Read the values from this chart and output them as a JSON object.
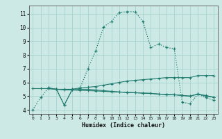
{
  "xlabel": "Humidex (Indice chaleur)",
  "bg_color": "#cce9e5",
  "grid_color": "#9ecfca",
  "line_color": "#1e7a6e",
  "xlim": [
    -0.5,
    23.5
  ],
  "ylim": [
    3.7,
    11.6
  ],
  "xticks": [
    0,
    1,
    2,
    3,
    4,
    5,
    6,
    7,
    8,
    9,
    10,
    11,
    12,
    13,
    14,
    15,
    16,
    17,
    18,
    19,
    20,
    21,
    22,
    23
  ],
  "yticks": [
    4,
    5,
    6,
    7,
    8,
    9,
    10,
    11
  ],
  "curve1_x": [
    0,
    1,
    2,
    3,
    4,
    5,
    6,
    7,
    8,
    9,
    10,
    11,
    12,
    13,
    14,
    15,
    16,
    17,
    18,
    19,
    20,
    21,
    22,
    23
  ],
  "curve1_y": [
    4.0,
    4.9,
    5.6,
    5.5,
    4.35,
    5.5,
    5.55,
    7.0,
    8.3,
    10.05,
    10.45,
    11.1,
    11.15,
    11.15,
    10.45,
    8.55,
    8.8,
    8.55,
    8.45,
    4.55,
    4.45,
    5.15,
    4.9,
    4.7
  ],
  "curve2_x": [
    0,
    1,
    2,
    3,
    4,
    5,
    6,
    7,
    8,
    9,
    10,
    11,
    12,
    13,
    14,
    15,
    16,
    17,
    18,
    19,
    20,
    21,
    22,
    23
  ],
  "curve2_y": [
    5.55,
    5.55,
    5.55,
    5.5,
    5.45,
    5.45,
    5.42,
    5.4,
    5.38,
    5.35,
    5.32,
    5.3,
    5.27,
    5.25,
    5.22,
    5.2,
    5.15,
    5.12,
    5.1,
    5.05,
    5.0,
    5.15,
    5.0,
    4.92
  ],
  "curve3_x": [
    2,
    3,
    4,
    5,
    6,
    7,
    8,
    9,
    10,
    11,
    12,
    13,
    14,
    15,
    16,
    17,
    18,
    19,
    20,
    21,
    22,
    23
  ],
  "curve3_y": [
    5.55,
    5.5,
    5.5,
    5.5,
    5.6,
    5.65,
    5.7,
    5.8,
    5.9,
    6.0,
    6.1,
    6.15,
    6.2,
    6.25,
    6.3,
    6.35,
    6.35,
    6.35,
    6.35,
    6.5,
    6.5,
    6.5
  ],
  "curve4_x": [
    2,
    3,
    4,
    5,
    6,
    7,
    8,
    9,
    10,
    11,
    12,
    13,
    14,
    15,
    16,
    17,
    18,
    19,
    20,
    21,
    22,
    23
  ],
  "curve4_y": [
    5.6,
    5.5,
    4.35,
    5.45,
    5.5,
    5.5,
    5.45,
    5.4,
    5.35,
    5.3,
    5.28,
    5.25,
    5.22,
    5.2,
    5.15,
    5.12,
    5.1,
    5.05,
    5.0,
    5.15,
    5.05,
    4.92
  ]
}
